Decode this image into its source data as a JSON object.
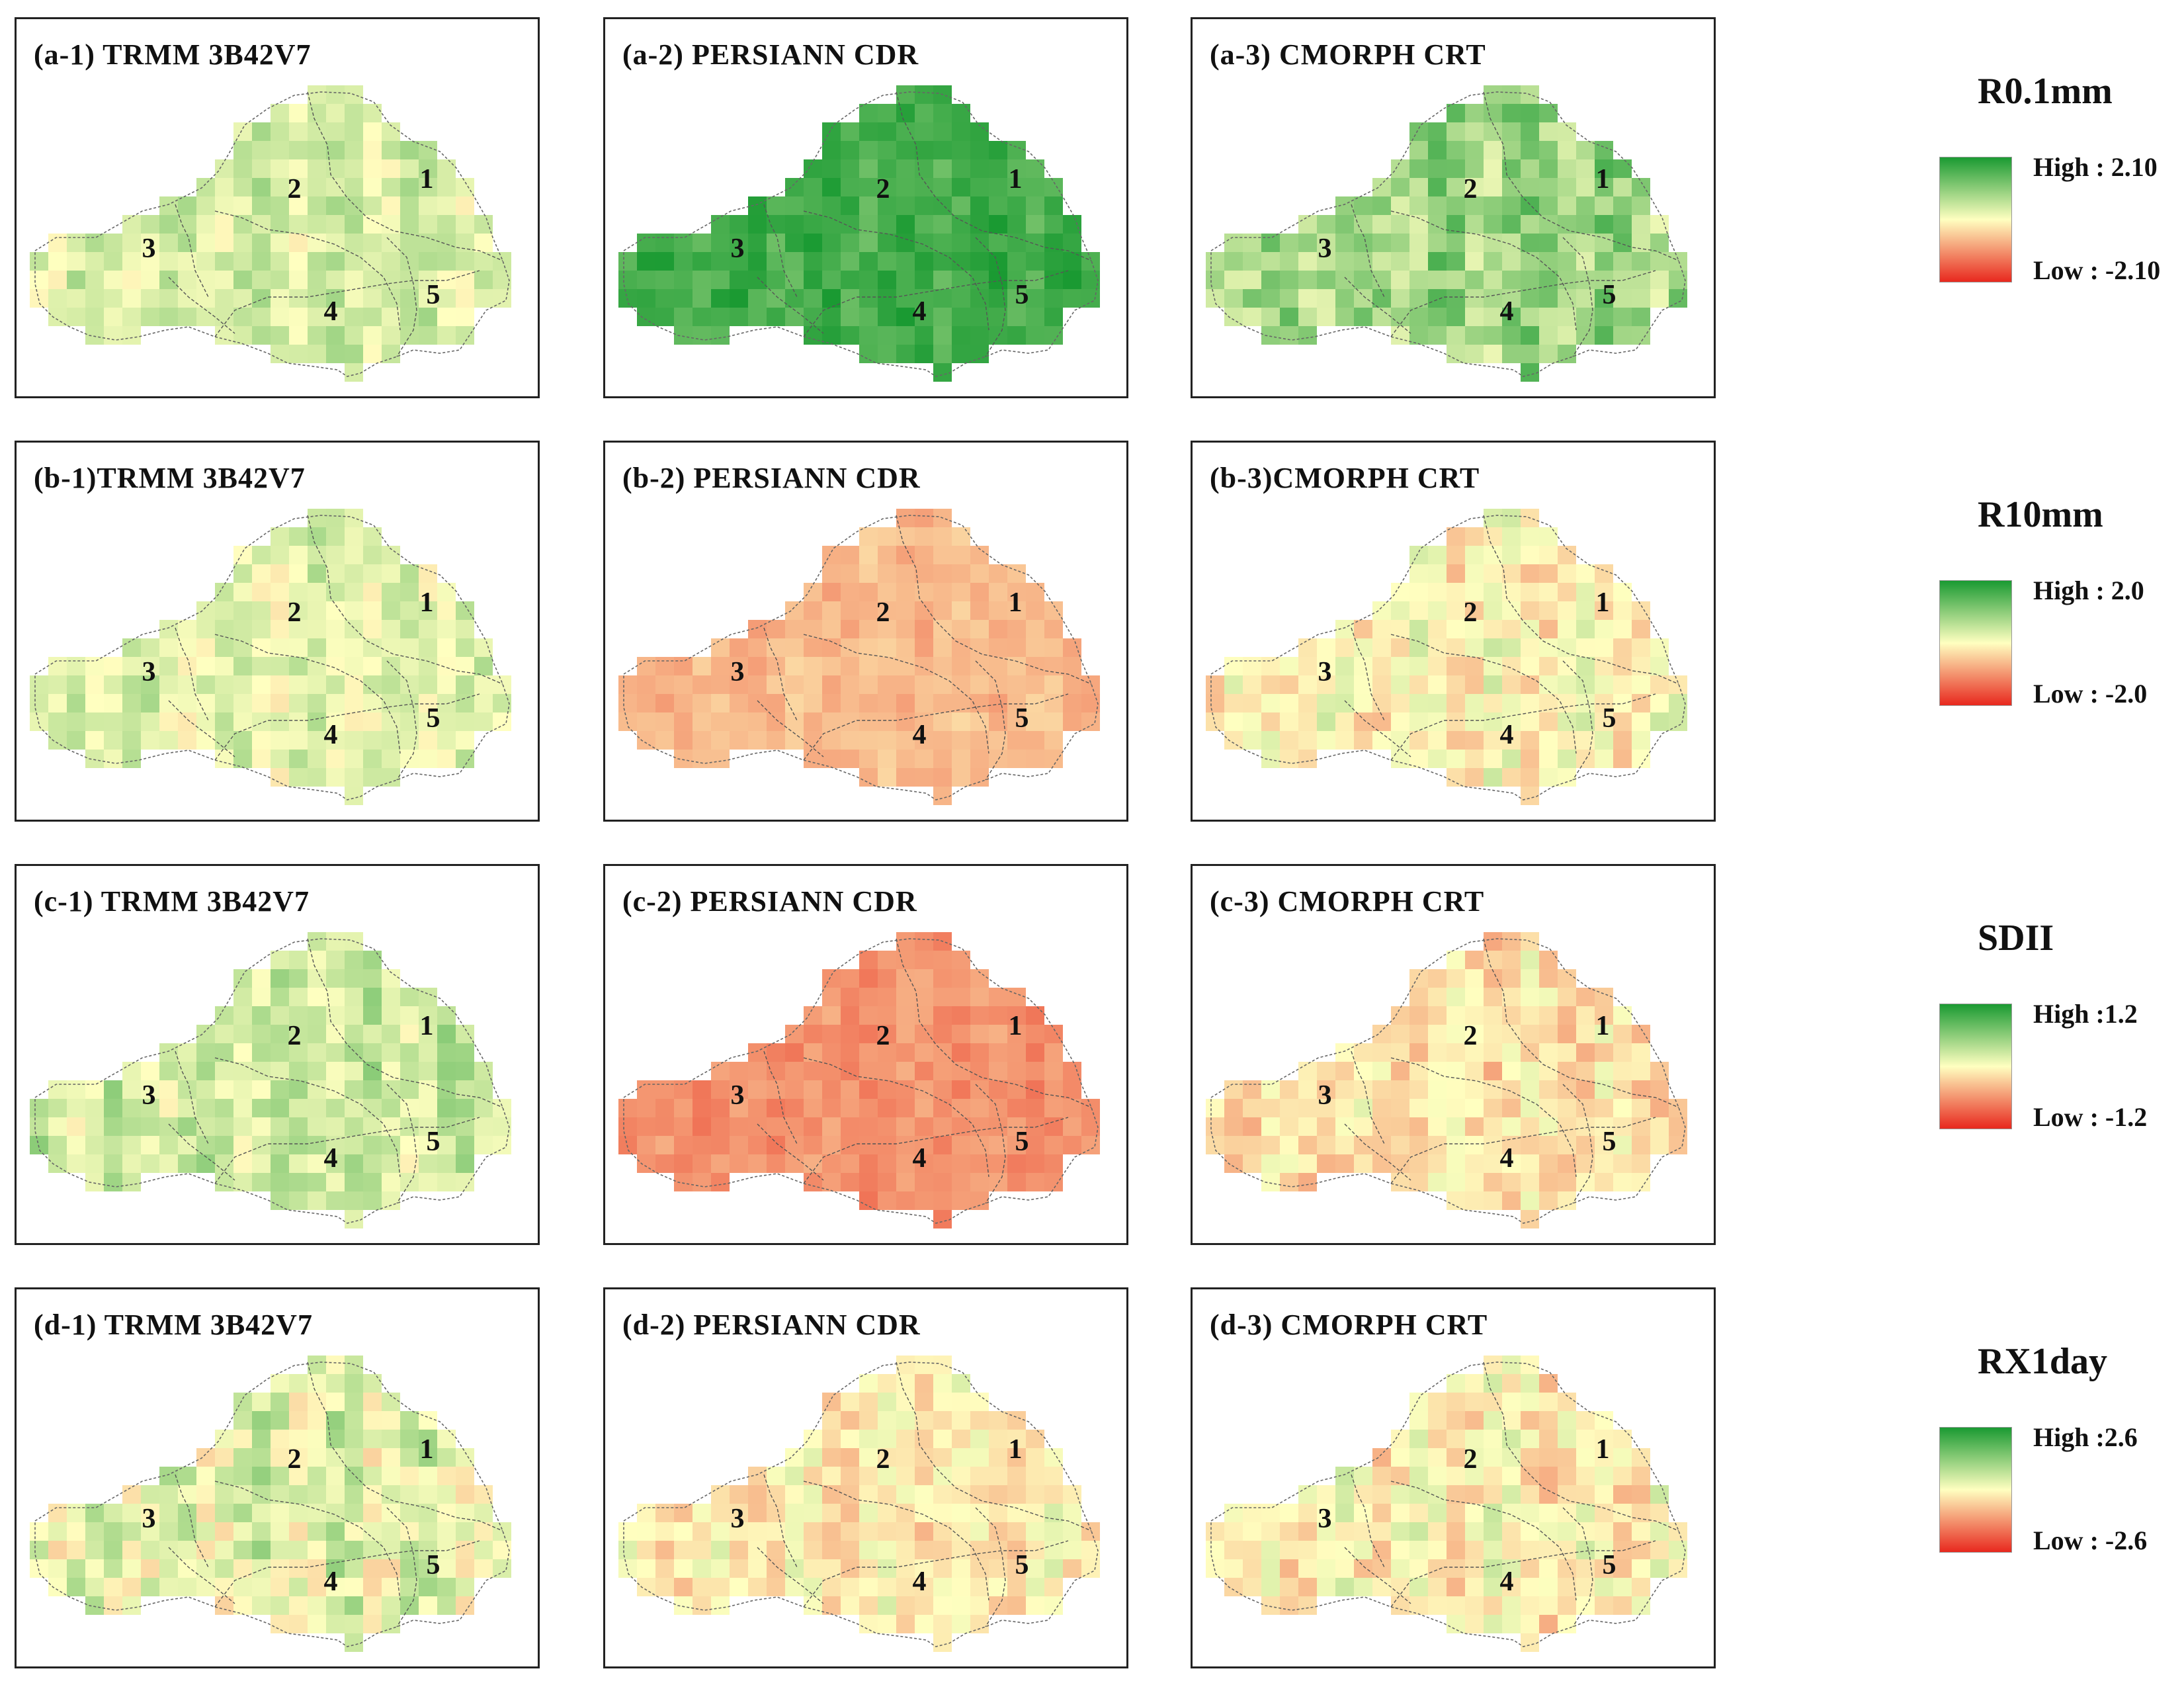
{
  "rows": [
    {
      "index": "r0.1mm",
      "panels": [
        {
          "title": "(a-1) TRMM 3B42V7",
          "level": 0.18,
          "spread": 0.18,
          "gridSeed": 3
        },
        {
          "title": "(a-2) PERSIANN CDR",
          "level": 0.82,
          "spread": 0.14,
          "gridSeed": 11
        },
        {
          "title": "(a-3) CMORPH CRT",
          "level": 0.42,
          "spread": 0.25,
          "gridSeed": 21
        }
      ]
    },
    {
      "index": "r10mm",
      "panels": [
        {
          "title": "(b-1)TRMM 3B42V7",
          "level": 0.12,
          "spread": 0.18,
          "gridSeed": 5
        },
        {
          "title": "(b-2) PERSIANN CDR",
          "level": -0.32,
          "spread": 0.1,
          "gridSeed": 13
        },
        {
          "title": "(b-3)CMORPH CRT",
          "level": -0.05,
          "spread": 0.2,
          "gridSeed": 23
        }
      ]
    },
    {
      "index": "sdii",
      "panels": [
        {
          "title": "(c-1) TRMM 3B42V7",
          "level": 0.22,
          "spread": 0.2,
          "gridSeed": 7
        },
        {
          "title": "(c-2) PERSIANN CDR",
          "level": -0.5,
          "spread": 0.1,
          "gridSeed": 17
        },
        {
          "title": "(c-3) CMORPH CRT",
          "level": -0.15,
          "spread": 0.2,
          "gridSeed": 27
        }
      ]
    },
    {
      "index": "rx1day",
      "panels": [
        {
          "title": "(d-1) TRMM 3B42V7",
          "level": 0.12,
          "spread": 0.25,
          "gridSeed": 9
        },
        {
          "title": "(d-2) PERSIANN CDR",
          "level": -0.08,
          "spread": 0.18,
          "gridSeed": 19
        },
        {
          "title": "(d-3) CMORPH CRT",
          "level": -0.05,
          "spread": 0.22,
          "gridSeed": 29
        }
      ]
    }
  ],
  "regionLabels": [
    "1",
    "2",
    "3",
    "4",
    "5"
  ],
  "legends": [
    {
      "title": "R0.1mm",
      "high": "High : 2.10",
      "low": "Low : -2.10"
    },
    {
      "title": "R10mm",
      "high": "High : 2.0",
      "low": "Low : -2.0"
    },
    {
      "title": "SDII",
      "high": "High :1.2",
      "low": "Low : -1.2"
    },
    {
      "title": "RX1day",
      "high": "High :2.6",
      "low": "Low : -2.6"
    }
  ],
  "colors": {
    "high": "#1a9a32",
    "mid": "#ffffc0",
    "low": "#e8281e"
  }
}
